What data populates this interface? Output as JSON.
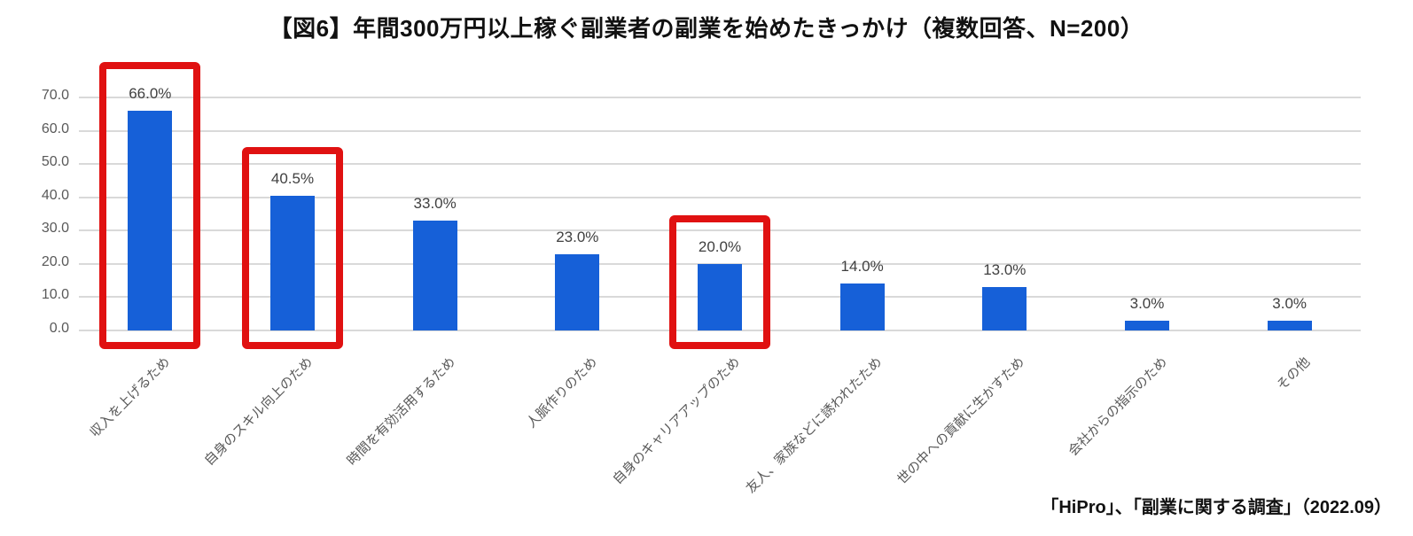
{
  "title": "【図6】年間300万円以上稼ぐ副業者の副業を始めたきっかけ（複数回答、N=200）",
  "source": "「HiPro」、「副業に関する調査」（2022.09）",
  "chart_data": {
    "type": "bar",
    "title": "【図6】年間300万円以上稼ぐ副業者の副業を始めたきっかけ（複数回答、N=200）",
    "categories": [
      "収入を上げるため",
      "自身のスキル向上のため",
      "時間を有効活用するため",
      "人脈作りのため",
      "自身のキャリアアップのため",
      "友人、家族などに誘われたため",
      "世の中への貢献に生かすため",
      "会社からの指示のため",
      "その他"
    ],
    "values": [
      66.0,
      40.5,
      33.0,
      23.0,
      20.0,
      14.0,
      13.0,
      3.0,
      3.0
    ],
    "value_labels": [
      "66.0%",
      "40.5%",
      "33.0%",
      "23.0%",
      "20.0%",
      "14.0%",
      "13.0%",
      "3.0%",
      "3.0%"
    ],
    "xlabel": "",
    "ylabel": "",
    "ylim": [
      0,
      70
    ],
    "ytick_step": 10,
    "ytick_labels": [
      "0.0",
      "10.0",
      "20.0",
      "30.0",
      "40.0",
      "50.0",
      "60.0",
      "70.0"
    ],
    "grid": true,
    "legend": "none",
    "bar_color": "#1660d8",
    "highlighted_indices": [
      0,
      1,
      4
    ],
    "highlight_color": "#e01111",
    "gridline_color": "#d9d9d9",
    "ytick_color": "#595959",
    "xtick_color": "#595959",
    "value_label_color": "#404040"
  }
}
